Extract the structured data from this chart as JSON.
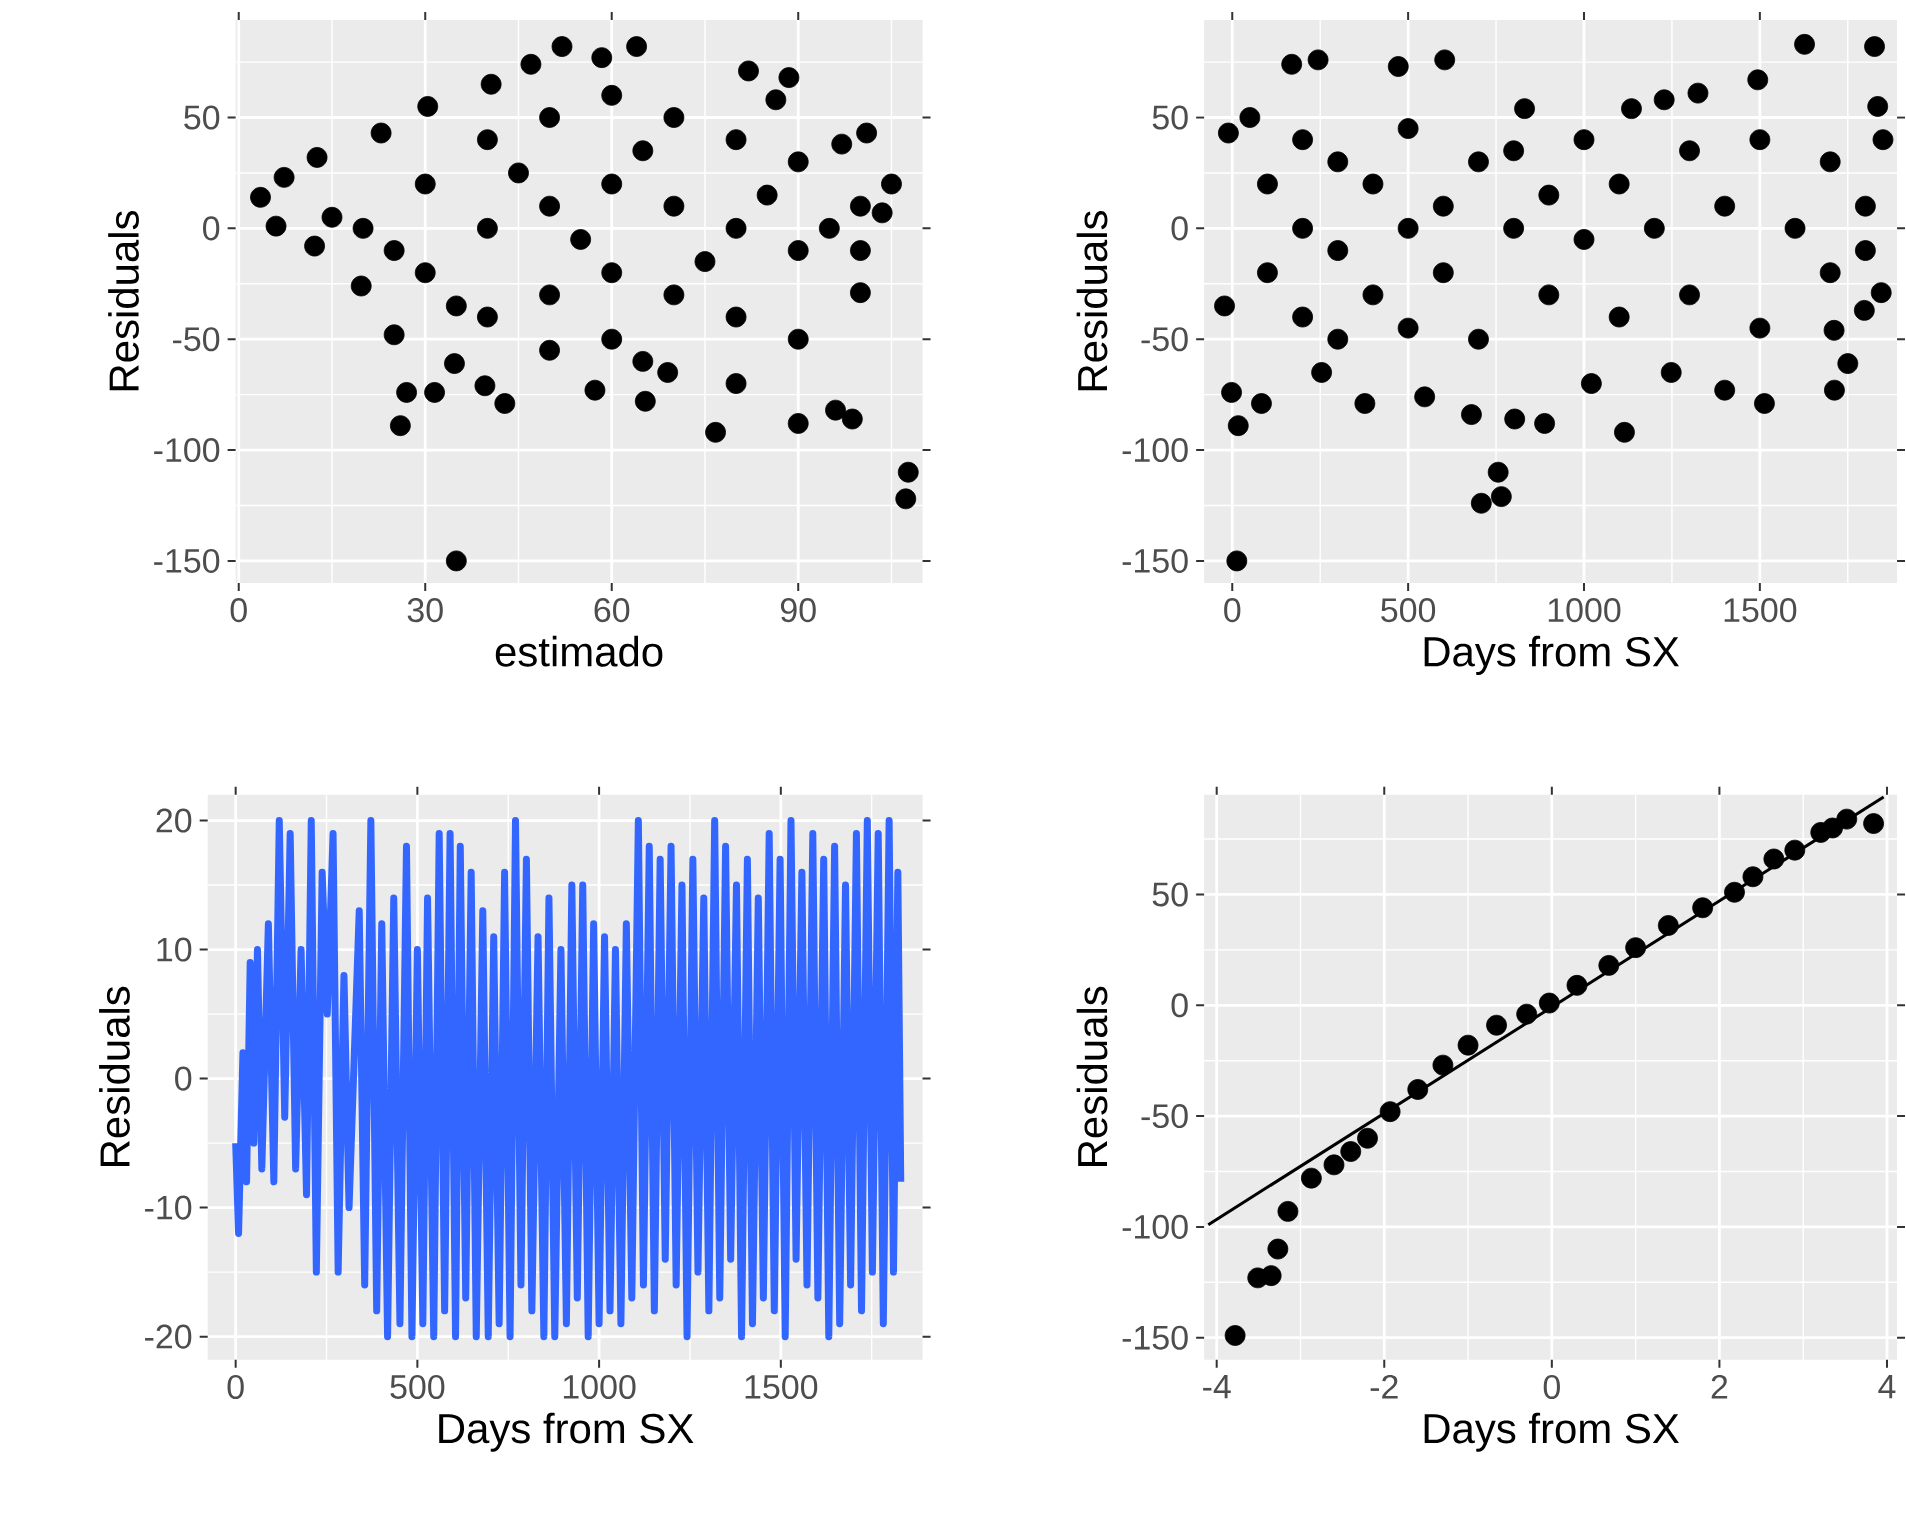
{
  "chart_data": [
    {
      "type": "scatter",
      "xlabel": "estimado",
      "ylabel": "Residuals",
      "color": "#000000",
      "marker": "circle",
      "grid": true,
      "xlim": [
        -0.5,
        110
      ],
      "ylim": [
        -160,
        94
      ],
      "xticks": [
        0,
        30,
        60,
        90
      ],
      "yticks": [
        -150,
        -100,
        -50,
        0,
        50
      ],
      "x": [
        3.5,
        12.6,
        7.3,
        6,
        26,
        35,
        52,
        64,
        58.4,
        47,
        40.6,
        30.4,
        22.9,
        82,
        88.5,
        101,
        105,
        103.5,
        100,
        98.7,
        96,
        107.7,
        107.3,
        90,
        76.7,
        65.4,
        57.3,
        42.8,
        39.6,
        31.5,
        27,
        25,
        19.7,
        12.2,
        34.7,
        69,
        86.4,
        97,
        20,
        30,
        30,
        40,
        40,
        40,
        50,
        50,
        50,
        50,
        60,
        60,
        60,
        60,
        70,
        70,
        70,
        80,
        80,
        80,
        90,
        90,
        90,
        100,
        100,
        15,
        25,
        45,
        55,
        65,
        75,
        85,
        95,
        35,
        65,
        80
      ],
      "values": [
        14,
        32,
        23,
        1,
        -89,
        -150,
        82,
        82,
        77,
        74,
        65,
        55,
        43,
        71,
        68,
        43,
        20,
        7,
        -29,
        -86,
        -82,
        -110,
        -122,
        -88,
        -92,
        -78,
        -73,
        -79,
        -71,
        -74,
        -74,
        -48,
        -26,
        -8,
        -61,
        -65,
        58,
        38,
        0,
        20,
        -20,
        40,
        0,
        -40,
        50,
        10,
        -30,
        -55,
        60,
        20,
        -20,
        -50,
        50,
        10,
        -30,
        40,
        0,
        -40,
        30,
        -10,
        -50,
        10,
        -10,
        5,
        -10,
        25,
        -5,
        35,
        -15,
        15,
        0,
        -35,
        -60,
        -70
      ]
    },
    {
      "type": "scatter",
      "xlabel": "Days from SX",
      "ylabel": "Residuals",
      "color": "#000000",
      "marker": "circle",
      "grid": true,
      "xlim": [
        -80,
        1890
      ],
      "ylim": [
        -160,
        94
      ],
      "xticks": [
        0,
        500,
        1000,
        1500
      ],
      "yticks": [
        -150,
        -100,
        -50,
        0,
        50
      ],
      "x": [
        13,
        17,
        -2,
        83,
        169,
        244,
        -11,
        -22,
        472,
        604,
        831,
        1135,
        1228,
        1324,
        1494,
        1627,
        1826,
        1835,
        1845,
        1797,
        1711,
        1750,
        1712,
        1513,
        1400,
        1115,
        888,
        803,
        756,
        765,
        708,
        680,
        547,
        377,
        254,
        1021,
        1248,
        100,
        100,
        200,
        200,
        200,
        300,
        300,
        300,
        400,
        400,
        500,
        500,
        500,
        600,
        600,
        700,
        700,
        800,
        800,
        900,
        900,
        1000,
        1000,
        1100,
        1100,
        1200,
        1300,
        1300,
        1400,
        1500,
        1500,
        1600,
        1700,
        1700,
        1800,
        1800,
        50,
        1850
      ],
      "values": [
        -150,
        -89,
        -74,
        -79,
        74,
        76,
        43,
        -35,
        73,
        76,
        54,
        54,
        58,
        61,
        67,
        83,
        82,
        55,
        -29,
        -37,
        -46,
        -61,
        -73,
        -79,
        -73,
        -92,
        -88,
        -86,
        -110,
        -121,
        -124,
        -84,
        -76,
        -79,
        -65,
        -70,
        -65,
        20,
        -20,
        40,
        0,
        -40,
        30,
        -10,
        -50,
        20,
        -30,
        45,
        0,
        -45,
        10,
        -20,
        30,
        -50,
        0,
        35,
        -30,
        15,
        40,
        -5,
        -40,
        20,
        0,
        35,
        -30,
        10,
        -45,
        40,
        0,
        30,
        -20,
        10,
        -10,
        50,
        40
      ]
    },
    {
      "type": "line",
      "xlabel": "Days from SX",
      "ylabel": "Residuals",
      "color": "#3366FF",
      "line_style": "solid",
      "grid": true,
      "xlim": [
        -77,
        1890
      ],
      "ylim": [
        -21.8,
        22
      ],
      "xticks": [
        0,
        500,
        1000,
        1500
      ],
      "yticks": [
        -20,
        -10,
        0,
        10,
        20
      ],
      "x": [
        0,
        8,
        20,
        30,
        40,
        50,
        60,
        72,
        90,
        105,
        120,
        135,
        150,
        165,
        180,
        195,
        208,
        222,
        238,
        252,
        268,
        282,
        298,
        312,
        340,
        355,
        372,
        388,
        402,
        418,
        435,
        452,
        470,
        485,
        500,
        515,
        528,
        545,
        560,
        575,
        590,
        605,
        618,
        633,
        648,
        662,
        680,
        695,
        710,
        725,
        740,
        755,
        770,
        785,
        800,
        815,
        832,
        848,
        862,
        878,
        895,
        910,
        925,
        940,
        955,
        970,
        985,
        1000,
        1015,
        1030,
        1045,
        1060,
        1075,
        1090,
        1108,
        1122,
        1138,
        1152,
        1168,
        1182,
        1198,
        1212,
        1228,
        1242,
        1258,
        1272,
        1288,
        1302,
        1318,
        1332,
        1348,
        1362,
        1378,
        1392,
        1408,
        1422,
        1438,
        1452,
        1468,
        1482,
        1498,
        1512,
        1528,
        1542,
        1558,
        1572,
        1588,
        1602,
        1618,
        1632,
        1648,
        1662,
        1678,
        1692,
        1708,
        1722,
        1738,
        1752,
        1768,
        1782,
        1798,
        1810,
        1822,
        1830
      ],
      "values": [
        -5,
        -12,
        2,
        -8,
        9,
        -5,
        10,
        -7,
        12,
        -8,
        20,
        -3,
        19,
        -7,
        10,
        -9,
        20,
        -15,
        16,
        5,
        19,
        -15,
        8,
        -10,
        13,
        -16,
        20,
        -18,
        12,
        -20,
        14,
        -19,
        18,
        -20,
        10,
        -19,
        14,
        -20,
        19,
        -18,
        19,
        -20,
        18,
        -17,
        16,
        -20,
        13,
        -20,
        11,
        -19,
        16,
        -20,
        20,
        -16,
        17,
        -18,
        11,
        -20,
        14,
        -20,
        10,
        -19,
        15,
        -17,
        15,
        -20,
        12,
        -19,
        11,
        -18,
        10,
        -19,
        12,
        -17,
        20,
        -16,
        18,
        -18,
        17,
        -14,
        18,
        -16,
        15,
        -20,
        17,
        -15,
        14,
        -18,
        20,
        -17,
        18,
        -14,
        15,
        -20,
        17,
        -19,
        14,
        -17,
        19,
        -18,
        17,
        -20,
        20,
        -14,
        16,
        -16,
        19,
        -17,
        17,
        -20,
        18,
        -19,
        15,
        -16,
        19,
        -18,
        20,
        -15,
        19,
        -19,
        20,
        -15,
        16,
        -8
      ]
    },
    {
      "type": "scatter",
      "xlabel": "Days from SX",
      "ylabel": "Residuals",
      "grid": true,
      "xlim": [
        -4.15,
        4.12
      ],
      "ylim": [
        -160,
        95
      ],
      "xticks": [
        -4,
        -2,
        0,
        2,
        4
      ],
      "yticks": [
        -150,
        -100,
        -50,
        0,
        50
      ],
      "series": [
        {
          "type": "scatter",
          "marker": "circle",
          "color": "#000000",
          "x": [
            -3.78,
            -3.51,
            -3.35,
            -3.27,
            -3.15,
            -2.87,
            -2.6,
            -2.4,
            -2.2,
            -1.93,
            -1.6,
            -1.3,
            -1.0,
            -0.66,
            -0.3,
            -0.03,
            0.3,
            0.68,
            1.0,
            1.39,
            1.8,
            2.18,
            2.4,
            2.65,
            2.9,
            3.21,
            3.35,
            3.52,
            3.84
          ],
          "values": [
            -149,
            -123,
            -122,
            -110,
            -93,
            -78,
            -72,
            -66,
            -60,
            -48,
            -38,
            -27,
            -18,
            -9,
            -4,
            1,
            9,
            18,
            26,
            36,
            44,
            51,
            58,
            66,
            70,
            78,
            80,
            84,
            82
          ]
        },
        {
          "type": "line",
          "color": "#000000",
          "x": [
            -4.1,
            3.96
          ],
          "values": [
            -99,
            94
          ]
        }
      ]
    }
  ]
}
